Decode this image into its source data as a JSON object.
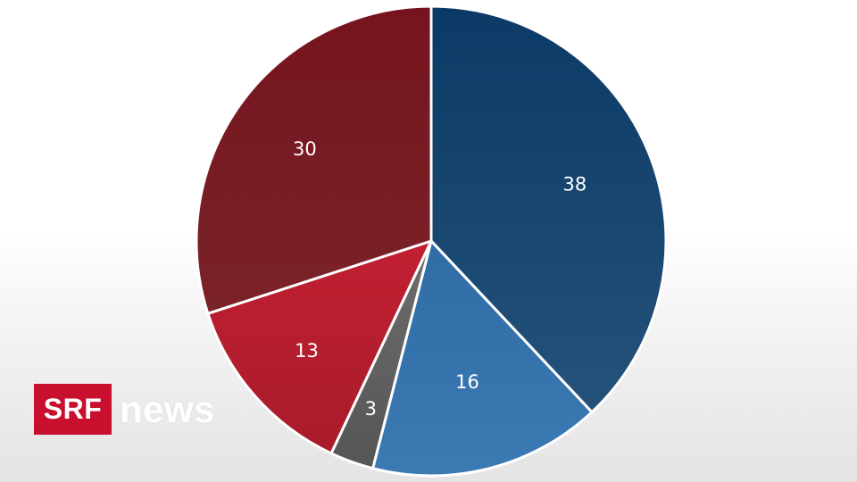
{
  "chart_data": {
    "type": "pie",
    "title": "",
    "start_angle_deg": 0,
    "direction": "clockwise",
    "slices": [
      {
        "value": 38,
        "label": "38",
        "color": "#0b3a66",
        "color_light": "#24527a"
      },
      {
        "value": 16,
        "label": "16",
        "color": "#2f6ca6",
        "color_light": "#3c7ab4"
      },
      {
        "value": 3,
        "label": "3",
        "color": "#6e6e6e",
        "color_light": "#555555"
      },
      {
        "value": 13,
        "label": "13",
        "color": "#c21f32",
        "color_light": "#a81c2b"
      },
      {
        "value": 30,
        "label": "30",
        "color": "#75141e",
        "color_light": "#7a2329"
      }
    ]
  },
  "branding": {
    "logo_box_text": "SRF",
    "logo_word": "news",
    "logo_color": "#c8102e"
  }
}
